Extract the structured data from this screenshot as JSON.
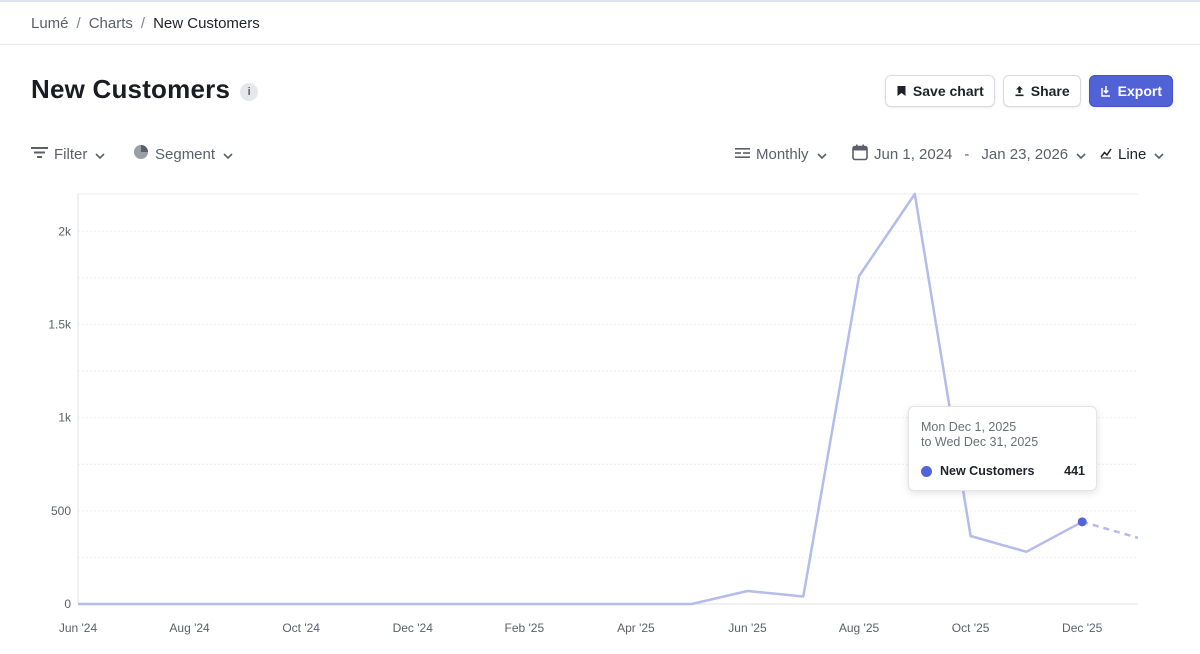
{
  "breadcrumb": {
    "root": "Lumé",
    "section": "Charts",
    "current": "New Customers"
  },
  "page": {
    "title": "New Customers",
    "info_icon": "i"
  },
  "actions": {
    "save": "Save chart",
    "share": "Share",
    "export": "Export"
  },
  "controls": {
    "filter": "Filter",
    "segment": "Segment",
    "interval": "Monthly",
    "date_start": "Jun 1, 2024",
    "date_sep": "-",
    "date_end": "Jan 23, 2026",
    "chart_type": "Line"
  },
  "tooltip": {
    "range_line1": "Mon Dec 1, 2025",
    "range_line2": "to Wed Dec 31, 2025",
    "series": "New Customers",
    "value": "441"
  },
  "colors": {
    "accent": "#5161d6",
    "line": "#b3bcea",
    "tooltip_dot": "#5464d8"
  },
  "chart_data": {
    "type": "line",
    "title": "",
    "xlabel": "",
    "ylabel": "",
    "x": [
      "2024-06",
      "2024-07",
      "2024-08",
      "2024-09",
      "2024-10",
      "2024-11",
      "2024-12",
      "2025-01",
      "2025-02",
      "2025-03",
      "2025-04",
      "2025-05",
      "2025-06",
      "2025-07",
      "2025-08",
      "2025-09",
      "2025-10",
      "2025-11",
      "2025-12",
      "2026-01"
    ],
    "x_tick_labels": [
      "Jun '24",
      "Aug '24",
      "Oct '24",
      "Dec '24",
      "Feb '25",
      "Apr '25",
      "Jun '25",
      "Aug '25",
      "Oct '25",
      "Dec '25"
    ],
    "y_tick_labels": [
      "0",
      "500",
      "1k",
      "1.5k",
      "2k"
    ],
    "y_ticks": [
      0,
      500,
      1000,
      1500,
      2000
    ],
    "ylim": [
      0,
      2200
    ],
    "series": [
      {
        "name": "New Customers",
        "values": [
          0,
          0,
          0,
          0,
          0,
          0,
          0,
          0,
          0,
          0,
          0,
          0,
          70,
          40,
          1760,
          2200,
          365,
          280,
          441,
          355
        ],
        "partial_last_point": true
      }
    ],
    "grid": true,
    "legend": "none"
  }
}
